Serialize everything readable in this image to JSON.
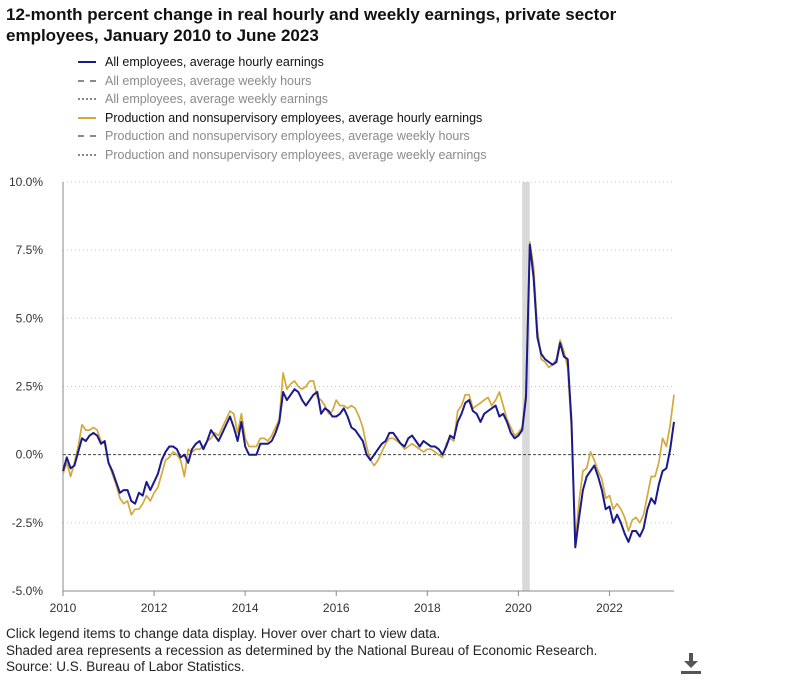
{
  "title": "12-month percent change in real hourly and weekly earnings, private sector employees, January 2010 to June 2023",
  "legend": [
    {
      "label": "All employees, average hourly earnings",
      "style": "solid",
      "color": "#1a1a8c",
      "active": true
    },
    {
      "label": "All employees, average weekly hours",
      "style": "dashed",
      "color": "#8a8a8a",
      "active": false
    },
    {
      "label": "All employees, average weekly earnings",
      "style": "dotted",
      "color": "#8a8a8a",
      "active": false
    },
    {
      "label": "Production and nonsupervisory employees, average hourly earnings",
      "style": "solid",
      "color": "#d4a93a",
      "active": true
    },
    {
      "label": "Production and nonsupervisory employees, average weekly hours",
      "style": "dashed",
      "color": "#8a8a8a",
      "active": false
    },
    {
      "label": "Production and nonsupervisory employees, average weekly earnings",
      "style": "dotted",
      "color": "#8a8a8a",
      "active": false
    }
  ],
  "footer": {
    "line1": "Click legend items to change data display. Hover over chart to view data.",
    "line2": "Shaded area represents a recession as determined by the National Bureau of Economic Research.",
    "line3": "Source: U.S. Bureau of Labor Statistics."
  },
  "download_icon": "download-icon",
  "chart_data": {
    "type": "line",
    "x_start": "2010-01",
    "x_end": "2023-06",
    "x_ticks": [
      "2010",
      "2012",
      "2014",
      "2016",
      "2018",
      "2020",
      "2022"
    ],
    "y_ticks": [
      "10.0%",
      "7.5%",
      "5.0%",
      "2.5%",
      "0.0%",
      "-2.5%",
      "-5.0%"
    ],
    "ylim": [
      -5,
      10
    ],
    "grid": "horizontal dotted",
    "zero_line": "dashed",
    "recession": {
      "start": "2020-02",
      "end": "2020-04",
      "color": "#d9d9d9"
    },
    "series": [
      {
        "name": "All employees, average hourly earnings",
        "color": "#1a1a8c",
        "values": [
          -0.6,
          -0.1,
          -0.5,
          -0.4,
          0.1,
          0.6,
          0.5,
          0.7,
          0.8,
          0.7,
          0.4,
          0.5,
          -0.3,
          -0.6,
          -1.0,
          -1.4,
          -1.3,
          -1.3,
          -1.7,
          -1.8,
          -1.4,
          -1.5,
          -1.0,
          -1.3,
          -1.0,
          -0.7,
          -0.2,
          0.1,
          0.3,
          0.3,
          0.2,
          -0.1,
          0.0,
          -0.3,
          0.2,
          0.4,
          0.5,
          0.2,
          0.5,
          0.9,
          0.7,
          0.5,
          0.8,
          1.1,
          1.4,
          1.0,
          0.5,
          1.2,
          0.3,
          0.0,
          0.0,
          0.0,
          0.4,
          0.4,
          0.4,
          0.5,
          0.8,
          1.2,
          2.3,
          2.0,
          2.2,
          2.4,
          2.3,
          2.0,
          1.8,
          2.0,
          2.2,
          2.3,
          1.5,
          1.7,
          1.6,
          1.4,
          1.4,
          1.5,
          1.7,
          1.4,
          1.0,
          0.9,
          0.7,
          0.5,
          0.0,
          -0.2,
          0.0,
          0.2,
          0.4,
          0.5,
          0.8,
          0.8,
          0.6,
          0.4,
          0.3,
          0.6,
          0.7,
          0.5,
          0.3,
          0.5,
          0.4,
          0.3,
          0.3,
          0.2,
          0.0,
          0.3,
          0.7,
          0.6,
          1.2,
          1.5,
          1.9,
          2.0,
          1.6,
          1.5,
          1.2,
          1.5,
          1.6,
          1.7,
          1.8,
          1.4,
          1.5,
          1.2,
          0.8,
          0.6,
          0.7,
          0.9,
          2.1,
          7.7,
          6.5,
          4.3,
          3.7,
          3.5,
          3.4,
          3.3,
          3.4,
          4.1,
          3.6,
          3.5,
          1.2,
          -3.4,
          -2.3,
          -1.3,
          -0.8,
          -0.6,
          -0.4,
          -0.8,
          -1.3,
          -2.0,
          -1.9,
          -2.5,
          -2.2,
          -2.5,
          -2.9,
          -3.2,
          -2.8,
          -2.8,
          -3.0,
          -2.7,
          -2.0,
          -1.6,
          -1.8,
          -1.1,
          -0.6,
          -0.5,
          0.2,
          1.2
        ]
      },
      {
        "name": "Production and nonsupervisory employees, average hourly earnings",
        "color": "#d4a93a",
        "values": [
          -0.7,
          -0.3,
          -0.8,
          -0.3,
          0.3,
          1.1,
          0.9,
          0.9,
          1.0,
          0.9,
          0.5,
          0.4,
          -0.3,
          -0.7,
          -1.1,
          -1.6,
          -1.8,
          -1.7,
          -2.2,
          -2.0,
          -2.0,
          -1.8,
          -1.5,
          -1.7,
          -1.4,
          -1.2,
          -0.7,
          -0.2,
          -0.1,
          0.1,
          0.0,
          -0.2,
          -0.8,
          0.2,
          0.1,
          0.2,
          0.2,
          0.3,
          0.5,
          0.6,
          0.8,
          0.7,
          1.0,
          1.3,
          1.6,
          1.5,
          0.8,
          1.5,
          0.6,
          0.3,
          0.3,
          0.3,
          0.6,
          0.6,
          0.5,
          0.7,
          1.0,
          1.3,
          3.0,
          2.4,
          2.6,
          2.7,
          2.5,
          2.4,
          2.5,
          2.7,
          2.7,
          2.1,
          2.0,
          1.8,
          1.5,
          1.6,
          2.0,
          1.8,
          1.8,
          1.7,
          1.8,
          1.7,
          1.4,
          1.0,
          0.3,
          -0.2,
          -0.4,
          -0.2,
          0.1,
          0.4,
          0.6,
          0.6,
          0.5,
          0.4,
          0.2,
          0.3,
          0.4,
          0.3,
          0.2,
          0.1,
          0.2,
          0.2,
          0.1,
          0.0,
          -0.1,
          0.4,
          0.6,
          0.5,
          1.6,
          1.8,
          2.2,
          2.2,
          1.7,
          1.8,
          1.9,
          2.0,
          2.1,
          1.8,
          2.0,
          2.3,
          1.8,
          1.3,
          1.0,
          0.7,
          0.8,
          1.0,
          2.3,
          7.8,
          6.9,
          4.6,
          3.5,
          3.4,
          3.2,
          3.3,
          3.5,
          4.2,
          3.8,
          3.2,
          0.9,
          -3.2,
          -1.7,
          -0.6,
          -0.5,
          0.1,
          -0.2,
          -0.6,
          -0.9,
          -1.6,
          -1.5,
          -2.0,
          -1.8,
          -2.0,
          -2.3,
          -2.8,
          -2.4,
          -2.3,
          -2.5,
          -2.2,
          -1.5,
          -0.8,
          -0.8,
          -0.3,
          0.6,
          0.3,
          1.1,
          2.2
        ]
      }
    ]
  }
}
